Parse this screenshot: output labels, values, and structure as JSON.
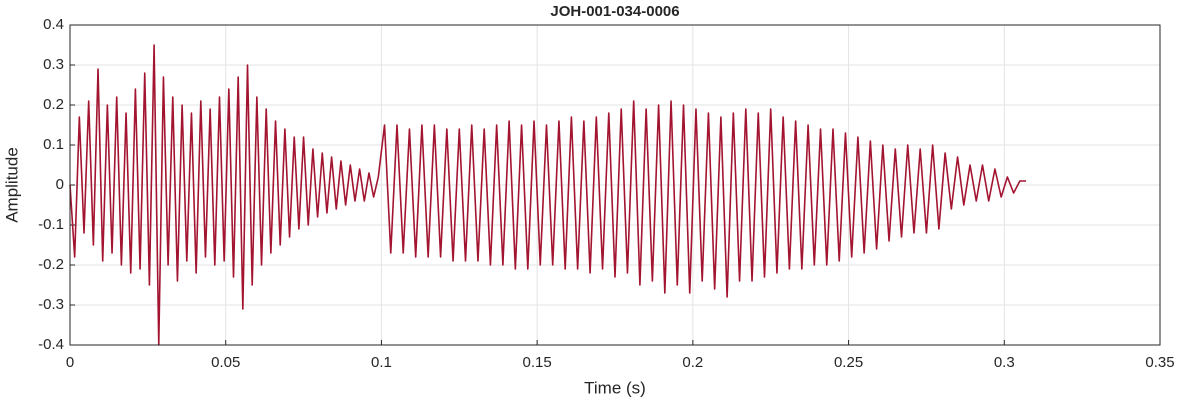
{
  "chart_data": {
    "type": "line",
    "title": "JOH-001-034-0006",
    "x_label": "Time (s)",
    "y_label": "Amplitude",
    "color": "#a2142f",
    "grid": true,
    "xlim": [
      0,
      0.35
    ],
    "xticks": [
      0,
      0.05,
      0.1,
      0.15,
      0.2,
      0.25,
      0.3,
      0.35
    ],
    "ylim": [
      -0.4,
      0.4
    ],
    "yticks": [
      -0.4,
      -0.3,
      -0.2,
      -0.1,
      0,
      0.1,
      0.2,
      0.3,
      0.4
    ],
    "x": [
      0,
      0.0015,
      0.003,
      0.0045,
      0.006,
      0.0075,
      0.009,
      0.0105,
      0.012,
      0.0135,
      0.015,
      0.0165,
      0.018,
      0.0195,
      0.021,
      0.0225,
      0.024,
      0.0255,
      0.027,
      0.0285,
      0.03,
      0.0315,
      0.033,
      0.0345,
      0.036,
      0.0375,
      0.039,
      0.0405,
      0.042,
      0.0435,
      0.045,
      0.0465,
      0.048,
      0.0495,
      0.051,
      0.0525,
      0.054,
      0.0555,
      0.057,
      0.0585,
      0.06,
      0.0615,
      0.063,
      0.0645,
      0.066,
      0.0675,
      0.069,
      0.0705,
      0.072,
      0.0735,
      0.075,
      0.0765,
      0.078,
      0.0795,
      0.081,
      0.0825,
      0.084,
      0.0855,
      0.087,
      0.0885,
      0.09,
      0.0915,
      0.093,
      0.0945,
      0.096,
      0.0975,
      0.099,
      0.101,
      0.103,
      0.105,
      0.107,
      0.109,
      0.111,
      0.113,
      0.115,
      0.117,
      0.119,
      0.121,
      0.123,
      0.125,
      0.127,
      0.129,
      0.131,
      0.133,
      0.135,
      0.137,
      0.139,
      0.141,
      0.143,
      0.145,
      0.147,
      0.149,
      0.151,
      0.153,
      0.155,
      0.157,
      0.159,
      0.161,
      0.163,
      0.165,
      0.167,
      0.169,
      0.171,
      0.173,
      0.175,
      0.177,
      0.179,
      0.181,
      0.183,
      0.185,
      0.187,
      0.189,
      0.191,
      0.193,
      0.195,
      0.197,
      0.199,
      0.201,
      0.203,
      0.205,
      0.207,
      0.209,
      0.211,
      0.213,
      0.215,
      0.217,
      0.219,
      0.221,
      0.223,
      0.225,
      0.227,
      0.229,
      0.231,
      0.233,
      0.235,
      0.237,
      0.239,
      0.241,
      0.243,
      0.245,
      0.247,
      0.249,
      0.251,
      0.253,
      0.255,
      0.257,
      0.259,
      0.261,
      0.263,
      0.265,
      0.267,
      0.269,
      0.271,
      0.273,
      0.275,
      0.277,
      0.279,
      0.281,
      0.283,
      0.285,
      0.287,
      0.289,
      0.291,
      0.293,
      0.295,
      0.297,
      0.299,
      0.301,
      0.303,
      0.305,
      0.307
    ],
    "values": [
      0,
      -0.18,
      0.17,
      -0.12,
      0.21,
      -0.15,
      0.29,
      -0.19,
      0.2,
      -0.17,
      0.22,
      -0.2,
      0.18,
      -0.22,
      0.24,
      -0.21,
      0.28,
      -0.25,
      0.35,
      -0.4,
      0.27,
      -0.2,
      0.22,
      -0.24,
      0.2,
      -0.19,
      0.18,
      -0.22,
      0.21,
      -0.18,
      0.19,
      -0.2,
      0.22,
      -0.19,
      0.24,
      -0.23,
      0.27,
      -0.31,
      0.3,
      -0.25,
      0.22,
      -0.2,
      0.19,
      -0.17,
      0.16,
      -0.15,
      0.14,
      -0.13,
      0.12,
      -0.11,
      0.12,
      -0.1,
      0.09,
      -0.08,
      0.08,
      -0.07,
      0.07,
      -0.06,
      0.06,
      -0.05,
      0.05,
      -0.04,
      0.04,
      -0.04,
      0.03,
      -0.03,
      0.02,
      0.15,
      -0.17,
      0.15,
      -0.17,
      0.14,
      -0.18,
      0.15,
      -0.18,
      0.15,
      -0.18,
      0.14,
      -0.19,
      0.14,
      -0.19,
      0.15,
      -0.19,
      0.14,
      -0.2,
      0.15,
      -0.2,
      0.16,
      -0.21,
      0.15,
      -0.21,
      0.16,
      -0.2,
      0.15,
      -0.2,
      0.16,
      -0.21,
      0.17,
      -0.21,
      0.16,
      -0.22,
      0.17,
      -0.21,
      0.18,
      -0.23,
      0.19,
      -0.22,
      0.21,
      -0.25,
      0.19,
      -0.24,
      0.2,
      -0.27,
      0.21,
      -0.25,
      0.2,
      -0.27,
      0.19,
      -0.24,
      0.18,
      -0.26,
      0.17,
      -0.28,
      0.18,
      -0.24,
      0.19,
      -0.24,
      0.18,
      -0.23,
      0.19,
      -0.22,
      0.17,
      -0.21,
      0.16,
      -0.21,
      0.15,
      -0.2,
      0.14,
      -0.2,
      0.14,
      -0.19,
      0.13,
      -0.18,
      0.12,
      -0.17,
      0.11,
      -0.16,
      0.1,
      -0.14,
      0.09,
      -0.13,
      0.1,
      -0.12,
      0.09,
      -0.12,
      0.1,
      -0.11,
      0.08,
      -0.06,
      0.07,
      -0.05,
      0.05,
      -0.04,
      0.05,
      -0.04,
      0.04,
      -0.03,
      0.02,
      -0.02,
      0.01,
      0.01
    ]
  }
}
